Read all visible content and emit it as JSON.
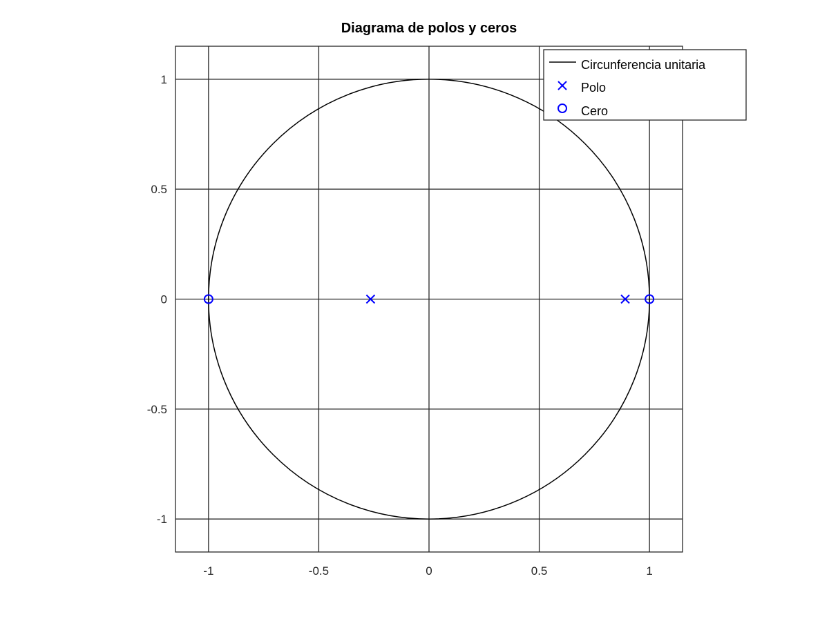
{
  "chart_data": {
    "type": "scatter",
    "title": "Diagrama de polos y ceros",
    "xlabel": "",
    "ylabel": "",
    "xlim": [
      -1.15,
      1.15
    ],
    "ylim": [
      -1.15,
      1.15
    ],
    "xticks": [
      -1,
      -0.5,
      0,
      0.5,
      1
    ],
    "yticks": [
      -1,
      -0.5,
      0,
      0.5,
      1
    ],
    "xtick_labels": [
      "-1",
      "-0.5",
      "0",
      "0.5",
      "1"
    ],
    "ytick_labels": [
      "-1",
      "-0.5",
      "0",
      "0.5",
      "1"
    ],
    "grid": true,
    "legend_position": "top-right",
    "series": [
      {
        "name": "Circunferencia unitaria",
        "kind": "line",
        "shape": "unit-circle",
        "radius": 1,
        "center": [
          0,
          0
        ],
        "color": "#000000"
      },
      {
        "name": "Polo",
        "kind": "marker",
        "marker": "x",
        "color": "#0000ff",
        "points": [
          [
            -0.265,
            0
          ],
          [
            0.89,
            0
          ]
        ]
      },
      {
        "name": "Cero",
        "kind": "marker",
        "marker": "o",
        "color": "#0000ff",
        "points": [
          [
            -1,
            0
          ],
          [
            1,
            0
          ]
        ]
      }
    ]
  }
}
